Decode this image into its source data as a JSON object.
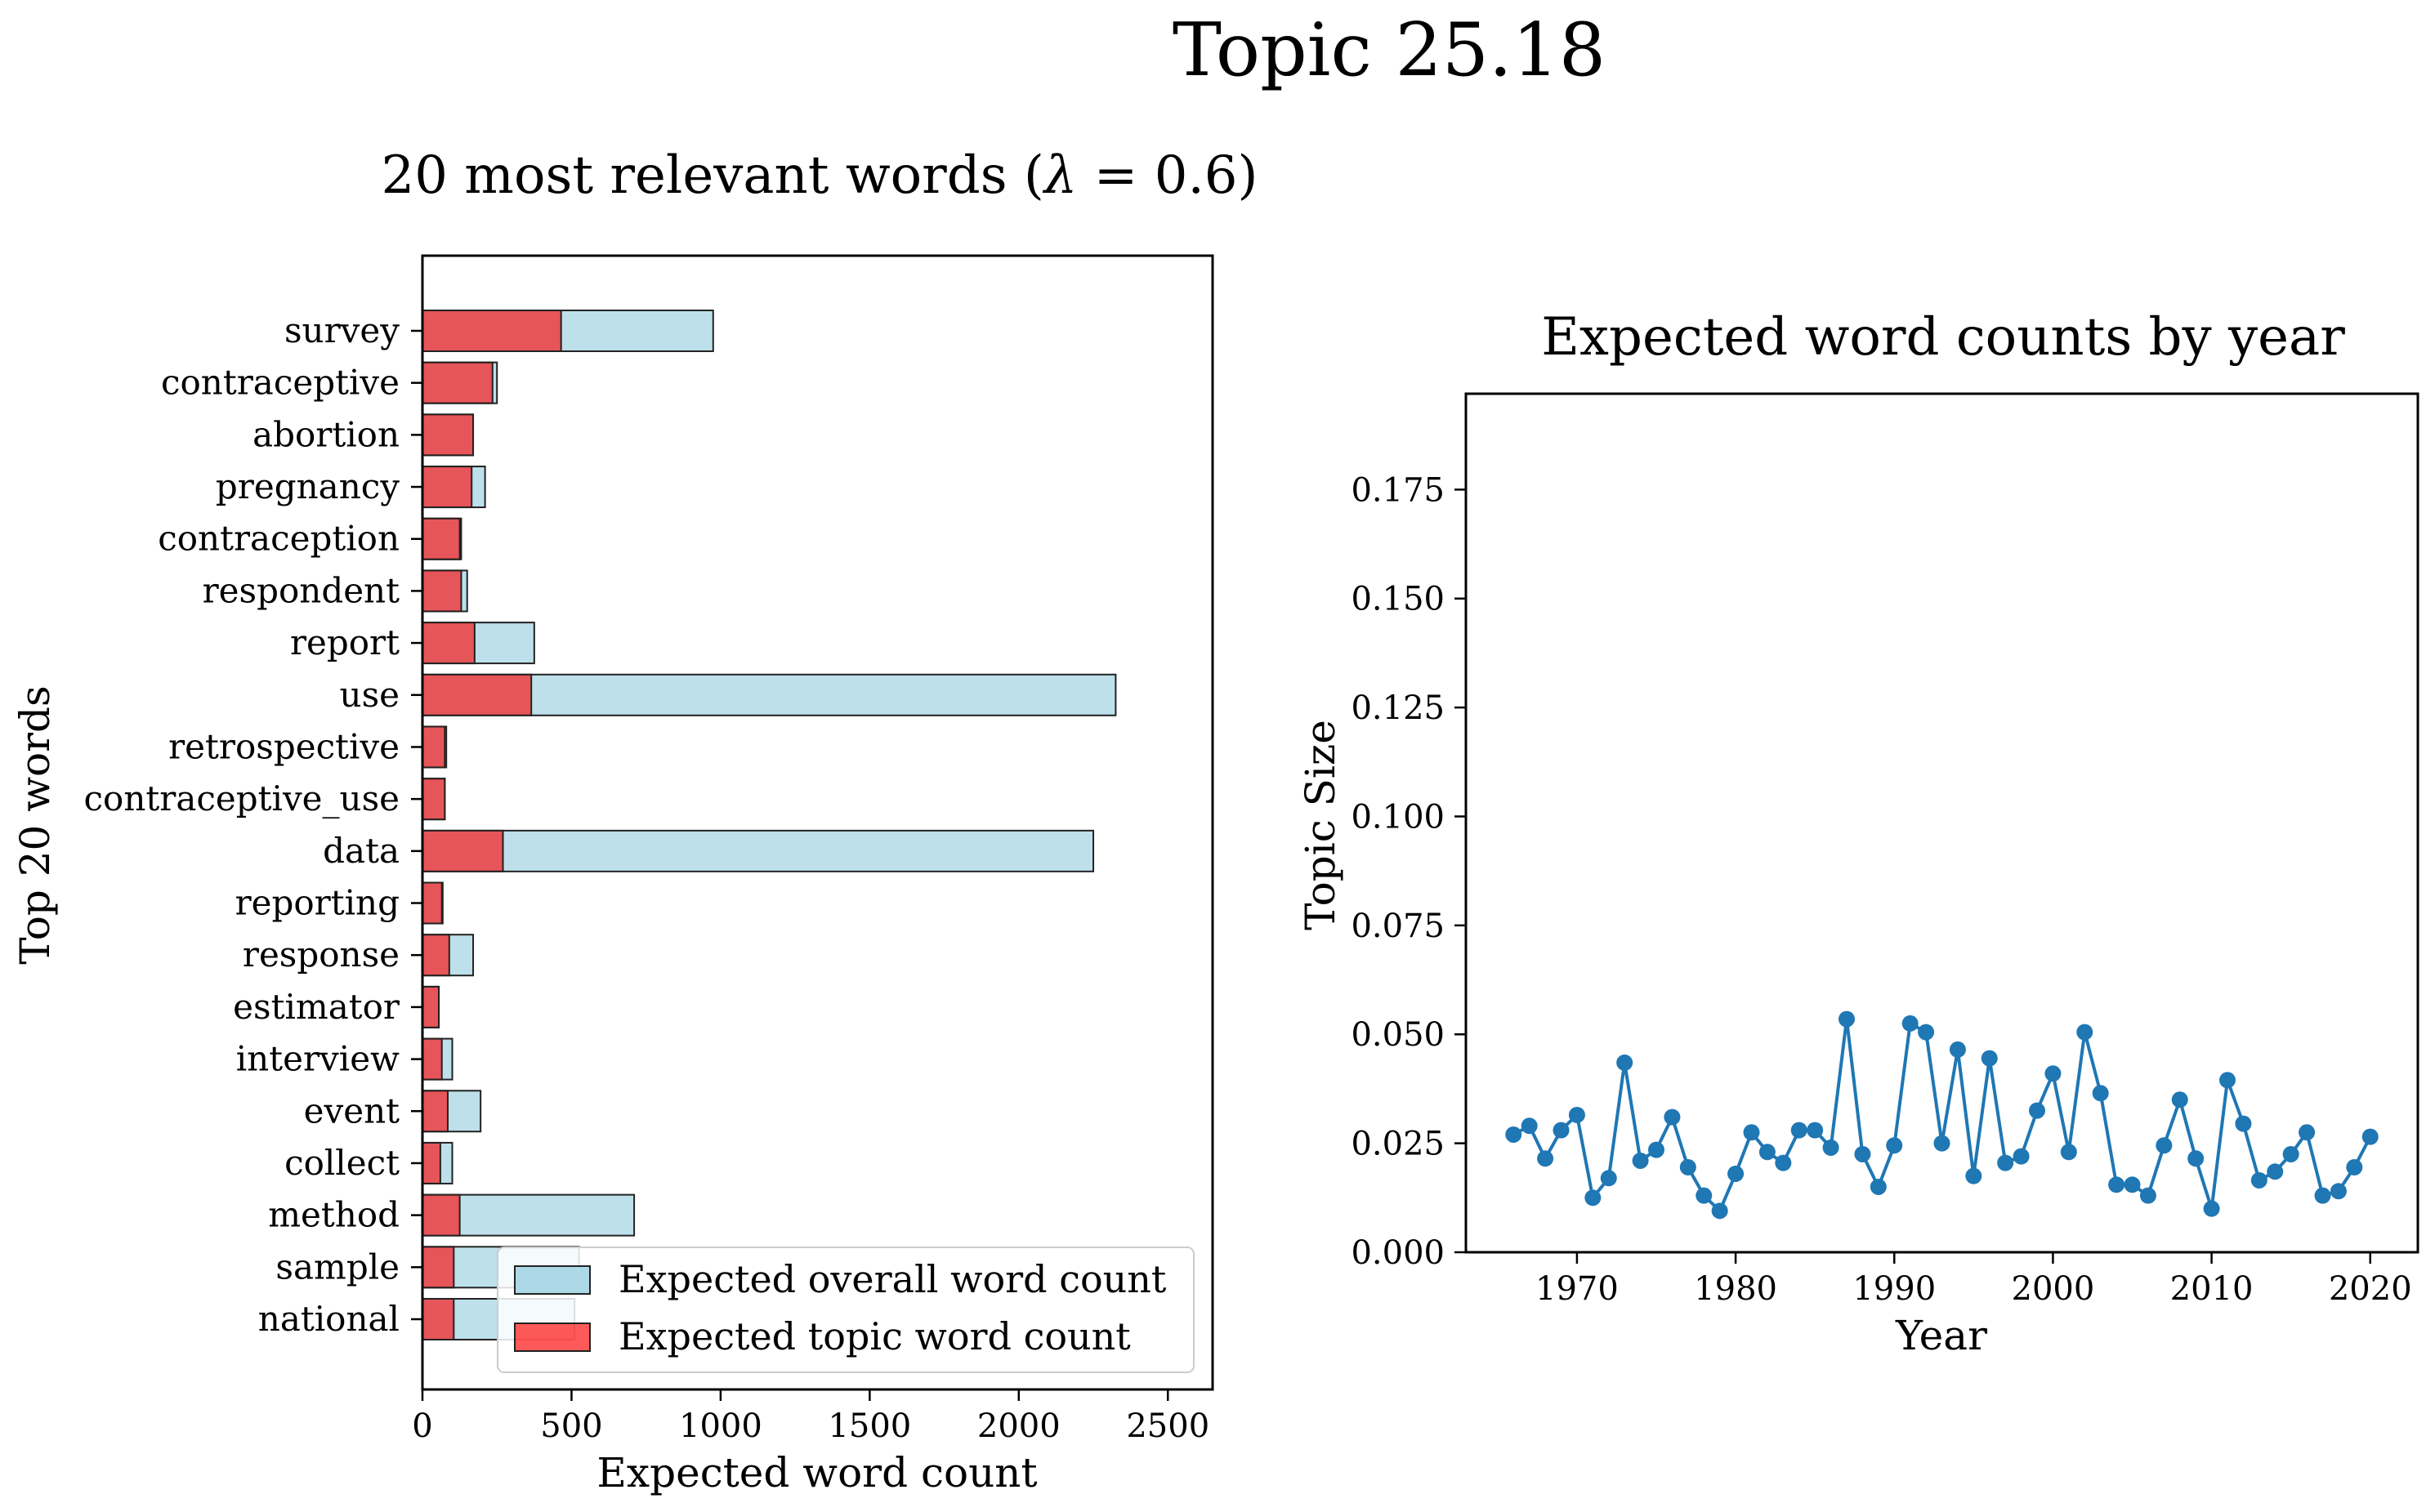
{
  "figure": {
    "suptitle": "Topic 25.18"
  },
  "chart_data": [
    {
      "type": "bar",
      "orientation": "horizontal",
      "title": "20 most relevant words (λ = 0.6)",
      "title_prefix": "20 most relevant words (",
      "title_lambda": "λ",
      "title_suffix": " = 0.6)",
      "xlabel": "Expected word count",
      "ylabel": "Top 20 words",
      "xlim": [
        0,
        2650
      ],
      "xticks": [
        0,
        500,
        1000,
        1500,
        2000,
        2500
      ],
      "categories": [
        "survey",
        "contraceptive",
        "abortion",
        "pregnancy",
        "contraception",
        "respondent",
        "report",
        "use",
        "retrospective",
        "contraceptive_use",
        "data",
        "reporting",
        "response",
        "estimator",
        "interview",
        "event",
        "collect",
        "method",
        "sample",
        "national"
      ],
      "series": [
        {
          "name": "Expected overall word count",
          "color": "#add8e6",
          "values": [
            975,
            250,
            170,
            210,
            130,
            150,
            375,
            2325,
            80,
            75,
            2250,
            68,
            170,
            55,
            100,
            195,
            100,
            710,
            525,
            510
          ]
        },
        {
          "name": "Expected topic word count",
          "color": "#ff0000",
          "values": [
            465,
            235,
            170,
            165,
            125,
            130,
            175,
            365,
            75,
            75,
            270,
            65,
            90,
            55,
            65,
            85,
            60,
            125,
            105,
            105
          ]
        }
      ],
      "legend": "lower-right",
      "grid": false
    },
    {
      "type": "line",
      "title": "Expected word counts by year",
      "xlabel": "Year",
      "ylabel": "Topic Size",
      "xlim": [
        1963,
        2023
      ],
      "ylim": [
        0,
        0.197
      ],
      "xticks": [
        1970,
        1980,
        1990,
        2000,
        2010,
        2020
      ],
      "yticks": [
        "0.000",
        "0.025",
        "0.050",
        "0.075",
        "0.100",
        "0.125",
        "0.150",
        "0.175"
      ],
      "color": "#1f77b4",
      "x": [
        1966,
        1967,
        1968,
        1969,
        1970,
        1971,
        1972,
        1973,
        1974,
        1975,
        1976,
        1977,
        1978,
        1979,
        1980,
        1981,
        1982,
        1983,
        1984,
        1985,
        1986,
        1987,
        1988,
        1989,
        1990,
        1991,
        1992,
        1993,
        1994,
        1995,
        1996,
        1997,
        1998,
        1999,
        2000,
        2001,
        2002,
        2003,
        2004,
        2005,
        2006,
        2007,
        2008,
        2009,
        2010,
        2011,
        2012,
        2013,
        2014,
        2015,
        2016,
        2017,
        2018,
        2019,
        2020
      ],
      "y": [
        0.027,
        0.029,
        0.0215,
        0.028,
        0.0315,
        0.0125,
        0.017,
        0.0435,
        0.021,
        0.0235,
        0.031,
        0.0195,
        0.013,
        0.0095,
        0.018,
        0.0275,
        0.023,
        0.0205,
        0.028,
        0.028,
        0.024,
        0.0535,
        0.0225,
        0.015,
        0.0245,
        0.0525,
        0.0505,
        0.025,
        0.0465,
        0.0175,
        0.0445,
        0.0205,
        0.022,
        0.0325,
        0.041,
        0.023,
        0.0505,
        0.0365,
        0.0155,
        0.0155,
        0.013,
        0.0245,
        0.035,
        0.0215,
        0.01,
        0.0395,
        0.0295,
        0.0165,
        0.0185,
        0.0225,
        0.0275,
        0.013,
        0.014,
        0.0195,
        0.0265
      ],
      "grid": false
    }
  ]
}
